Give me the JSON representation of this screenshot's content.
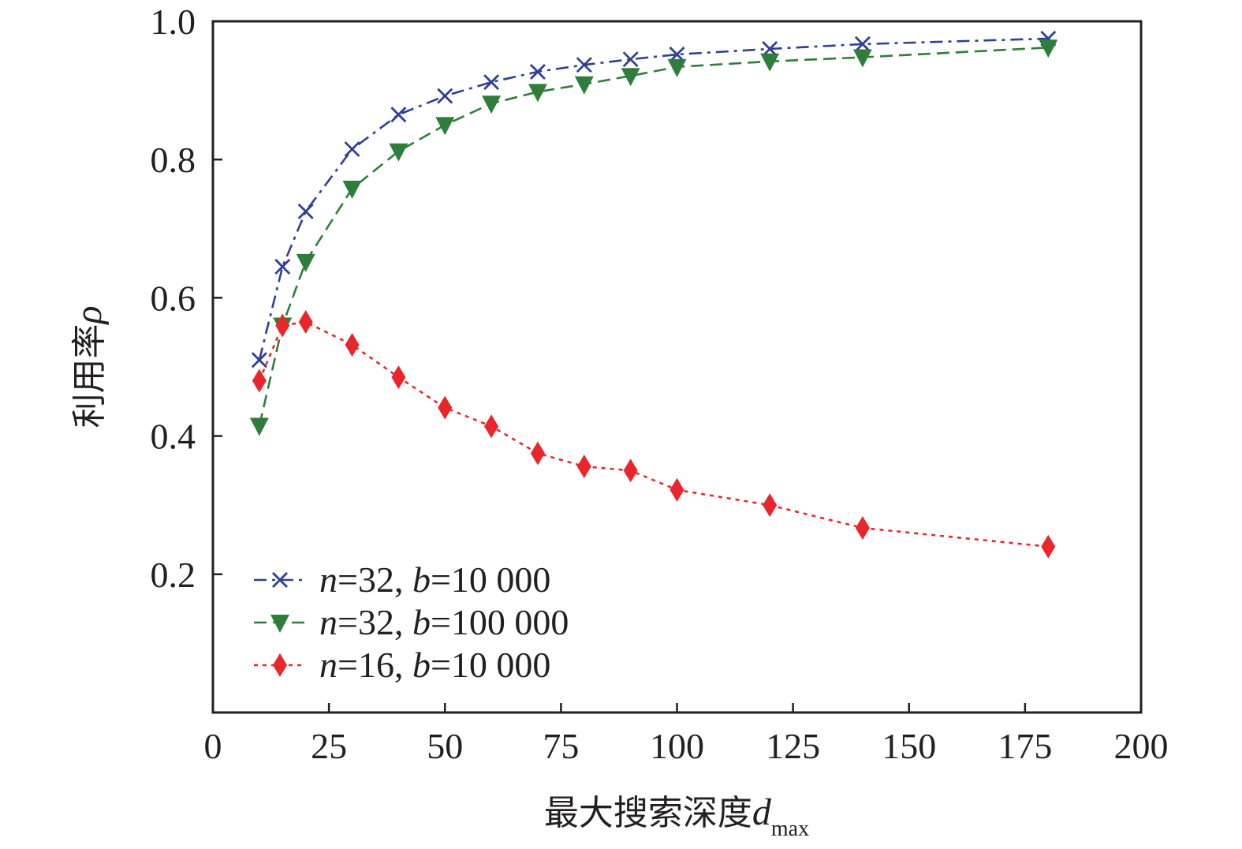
{
  "chart_data": {
    "type": "line",
    "title": "",
    "xlabel": "最大搜索深度",
    "xlabel_symbol": "d",
    "xlabel_subscript": "max",
    "ylabel": "利用率",
    "ylabel_symbol": "ρ",
    "xlim": [
      0,
      200
    ],
    "ylim": [
      0,
      1.0
    ],
    "xticks": [
      0,
      25,
      50,
      75,
      100,
      125,
      150,
      175,
      200
    ],
    "xtick_labels": [
      "0",
      "25",
      "50",
      "75",
      "100",
      "125",
      "150",
      "175",
      "200"
    ],
    "yticks": [
      0.2,
      0.4,
      0.6,
      0.8,
      1.0
    ],
    "ytick_labels": [
      "0.2",
      "0.4",
      "0.6",
      "0.8",
      "1.0"
    ],
    "grid": false,
    "legend_position": "bottom-left",
    "series": [
      {
        "name": "n=32, b=10 000",
        "legend_n": "n",
        "legend_n_value": "=32, ",
        "legend_b": "b",
        "legend_b_value": "=10 000",
        "color": "#2e3f96",
        "marker": "x",
        "linestyle": "dashdot",
        "x": [
          10,
          15,
          20,
          30,
          40,
          50,
          60,
          70,
          80,
          90,
          100,
          120,
          140,
          180
        ],
        "values": [
          0.51,
          0.645,
          0.725,
          0.815,
          0.865,
          0.892,
          0.912,
          0.927,
          0.937,
          0.945,
          0.952,
          0.96,
          0.967,
          0.975
        ]
      },
      {
        "name": "n=32, b=100 000",
        "legend_n": "n",
        "legend_n_value": "=32, ",
        "legend_b": "b",
        "legend_b_value": "=100 000",
        "color": "#2f7d3a",
        "marker": "triangle-down",
        "linestyle": "dashed",
        "x": [
          10,
          15,
          20,
          30,
          40,
          50,
          60,
          70,
          80,
          90,
          100,
          120,
          140,
          180
        ],
        "values": [
          0.415,
          0.56,
          0.652,
          0.758,
          0.812,
          0.85,
          0.881,
          0.898,
          0.909,
          0.921,
          0.934,
          0.942,
          0.948,
          0.962
        ]
      },
      {
        "name": "n=16, b=10 000",
        "legend_n": "n",
        "legend_n_value": "=16, ",
        "legend_b": "b",
        "legend_b_value": "=10 000",
        "color": "#e8262b",
        "marker": "diamond",
        "linestyle": "dotted",
        "x": [
          10,
          15,
          20,
          30,
          40,
          50,
          60,
          70,
          80,
          90,
          100,
          120,
          140,
          180
        ],
        "values": [
          0.48,
          0.56,
          0.565,
          0.532,
          0.485,
          0.441,
          0.414,
          0.375,
          0.356,
          0.35,
          0.322,
          0.3,
          0.267,
          0.24
        ]
      }
    ]
  }
}
